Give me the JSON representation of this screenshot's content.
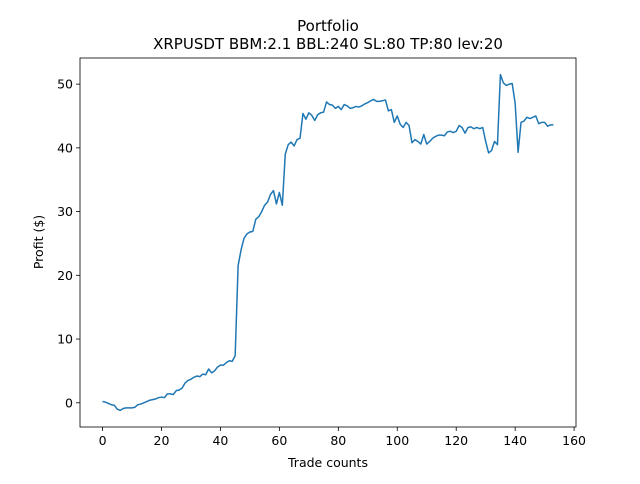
{
  "chart_data": {
    "type": "line",
    "title": "Portfolio",
    "subtitle": "XRPUSDT BBM:2.1 BBL:240 SL:80 TP:80 lev:20",
    "x_label": "Trade counts",
    "y_label": "Profit ($)",
    "x": [
      0,
      1,
      2,
      3,
      4,
      5,
      6,
      7,
      8,
      9,
      10,
      11,
      12,
      13,
      14,
      15,
      16,
      17,
      18,
      19,
      20,
      21,
      22,
      23,
      24,
      25,
      26,
      27,
      28,
      29,
      30,
      31,
      32,
      33,
      34,
      35,
      36,
      37,
      38,
      39,
      40,
      41,
      42,
      43,
      44,
      45,
      46,
      47,
      48,
      49,
      50,
      51,
      52,
      53,
      54,
      55,
      56,
      57,
      58,
      59,
      60,
      61,
      62,
      63,
      64,
      65,
      66,
      67,
      68,
      69,
      70,
      71,
      72,
      73,
      74,
      75,
      76,
      77,
      78,
      79,
      80,
      81,
      82,
      83,
      84,
      85,
      86,
      87,
      88,
      89,
      90,
      91,
      92,
      93,
      94,
      95,
      96,
      97,
      98,
      99,
      100,
      101,
      102,
      103,
      104,
      105,
      106,
      107,
      108,
      109,
      110,
      111,
      112,
      113,
      114,
      115,
      116,
      117,
      118,
      119,
      120,
      121,
      122,
      123,
      124,
      125,
      126,
      127,
      128,
      129,
      130,
      131,
      132,
      133,
      134,
      135,
      136,
      137,
      138,
      139,
      140,
      141,
      142,
      143,
      144,
      145,
      146,
      147,
      148,
      149,
      150,
      151,
      152,
      153
    ],
    "series": [
      {
        "name": "Profit",
        "color": "#1f77b4",
        "values": [
          0.2,
          0.1,
          -0.1,
          -0.3,
          -0.4,
          -1.0,
          -1.2,
          -0.9,
          -0.8,
          -0.8,
          -0.8,
          -0.7,
          -0.3,
          -0.2,
          0,
          0.2,
          0.4,
          0.5,
          0.6,
          0.8,
          0.9,
          0.8,
          1.4,
          1.4,
          1.3,
          1.9,
          2.0,
          2.3,
          3.1,
          3.5,
          3.7,
          4.0,
          4.2,
          4.1,
          4.5,
          4.4,
          5.3,
          4.7,
          5.0,
          5.6,
          5.9,
          5.9,
          6.3,
          6.6,
          6.5,
          7.4,
          21.5,
          24,
          25.8,
          26.5,
          26.8,
          26.9,
          28.8,
          29.2,
          30.0,
          31.0,
          31.5,
          32.7,
          33.3,
          31.2,
          33.0,
          31.0,
          39.0,
          40.5,
          40.9,
          40.3,
          41.3,
          41.5,
          45.4,
          44.5,
          45.5,
          45.1,
          44.3,
          45.2,
          45.5,
          45.6,
          47.2,
          46.8,
          46.7,
          46.2,
          46.5,
          46.0,
          46.8,
          46.6,
          46.2,
          46.3,
          46.5,
          46.4,
          46.6,
          46.9,
          47.1,
          47.4,
          47.6,
          47.3,
          47.3,
          47.4,
          47.5,
          45.8,
          46.0,
          44.0,
          45.0,
          43.7,
          43.2,
          44.0,
          43.5,
          40.8,
          41.3,
          41.0,
          40.6,
          42.1,
          40.6,
          41.0,
          41.5,
          41.8,
          42.0,
          42.0,
          41.9,
          42.5,
          42.6,
          42.4,
          42.6,
          43.5,
          43.2,
          42.3,
          43.2,
          43.3,
          43.0,
          43.2,
          43.0,
          43.2,
          41.0,
          39.2,
          39.6,
          41.0,
          40.5,
          51.5,
          50.2,
          49.8,
          50.0,
          50.1,
          47.0,
          39.3,
          44.0,
          44.2,
          44.8,
          44.6,
          44.8,
          45.0,
          43.8,
          44.0,
          44.0,
          43.4,
          43.6,
          43.6
        ]
      }
    ],
    "xlim": [
      -7.65,
      160.65
    ],
    "ylim": [
      -3.8,
      54.1
    ],
    "xticks": [
      0,
      20,
      40,
      60,
      80,
      100,
      120,
      140,
      160
    ],
    "yticks": [
      0,
      10,
      20,
      30,
      40,
      50
    ]
  }
}
